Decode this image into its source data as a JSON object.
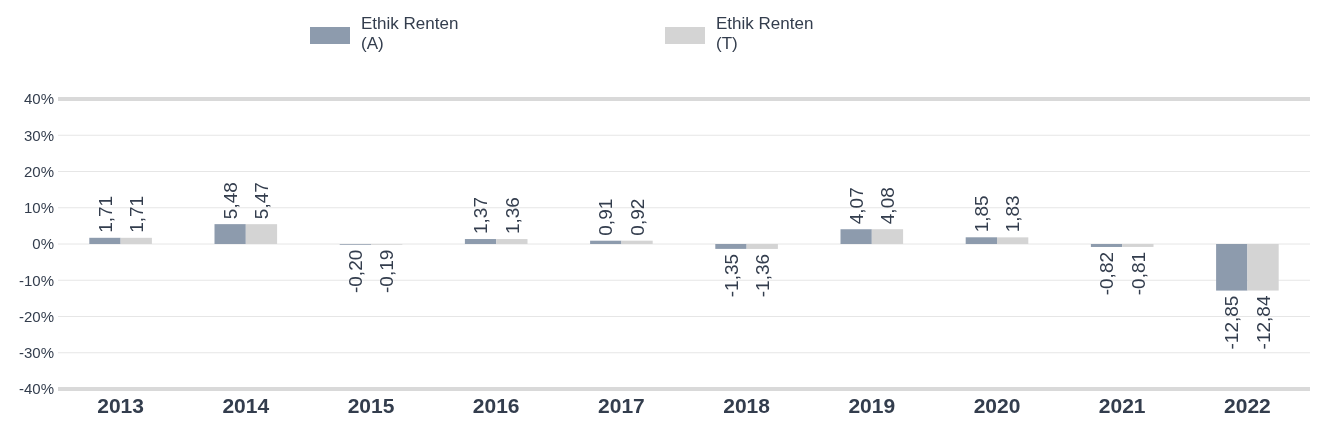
{
  "chart_data": {
    "type": "bar",
    "categories": [
      "2013",
      "2014",
      "2015",
      "2016",
      "2017",
      "2018",
      "2019",
      "2020",
      "2021",
      "2022"
    ],
    "series": [
      {
        "name": "Ethik Renten (A)",
        "color": "#8d9bad",
        "values": [
          1.71,
          5.48,
          -0.2,
          1.37,
          0.91,
          -1.35,
          4.07,
          1.85,
          -0.82,
          -12.85
        ],
        "value_labels": [
          "1,71",
          "5,48",
          "-0,20",
          "1,37",
          "0,91",
          "-1,35",
          "4,07",
          "1,85",
          "-0,82",
          "-12,85"
        ]
      },
      {
        "name": "Ethik Renten (T)",
        "color": "#d4d4d4",
        "values": [
          1.71,
          5.47,
          -0.19,
          1.36,
          0.92,
          -1.36,
          4.08,
          1.83,
          -0.81,
          -12.84
        ],
        "value_labels": [
          "1,71",
          "5,47",
          "-0,19",
          "1,36",
          "0,92",
          "-1,36",
          "4,08",
          "1,83",
          "-0,81",
          "-12,84"
        ]
      }
    ],
    "ylim": [
      -40,
      40
    ],
    "yticks": [
      {
        "value": -40,
        "label": "-40%"
      },
      {
        "value": -30,
        "label": "-30%"
      },
      {
        "value": -20,
        "label": "-20%"
      },
      {
        "value": -10,
        "label": "-10%"
      },
      {
        "value": 0,
        "label": "0%"
      },
      {
        "value": 10,
        "label": "10%"
      },
      {
        "value": 20,
        "label": "20%"
      },
      {
        "value": 30,
        "label": "30%"
      },
      {
        "value": 40,
        "label": "40%"
      }
    ],
    "grid": "y",
    "legend": "top"
  }
}
